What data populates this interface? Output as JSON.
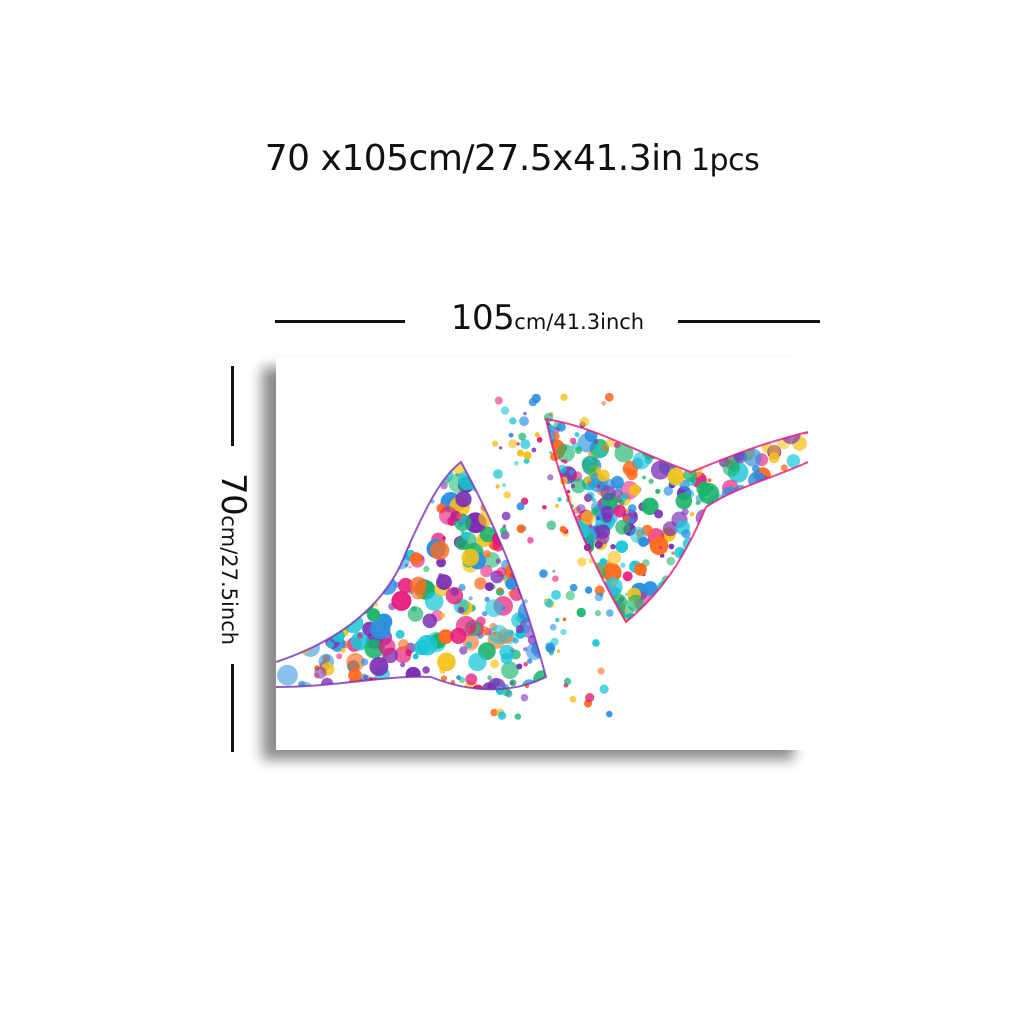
{
  "header": {
    "size_text": "70 x105cm/27.5x41.3in",
    "quantity_text": "1pcs"
  },
  "width_dimension": {
    "value": "105",
    "unit_text": "cm/41.3inch"
  },
  "height_dimension": {
    "value": "70",
    "unit_text": "cm/27.5inch"
  },
  "artwork": {
    "subject": "watercolor synapse artwork",
    "colors": [
      "#e6197a",
      "#2b8fe0",
      "#f6c21b",
      "#7b2fb5",
      "#ff6a1f",
      "#19b46a",
      "#18c6d8"
    ]
  }
}
